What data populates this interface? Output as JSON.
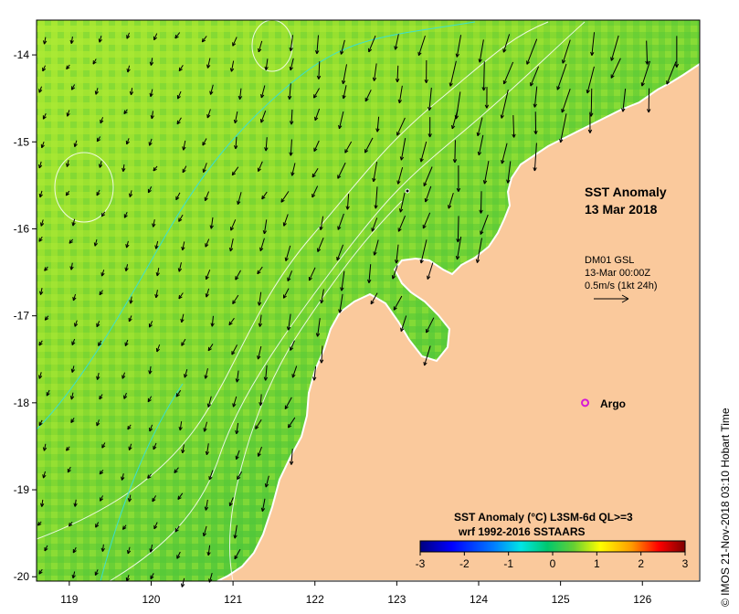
{
  "map": {
    "title_line1": "SST Anomaly",
    "title_line2": "13 Mar 2018",
    "current_source": "DM01 GSL",
    "current_time": "13-Mar 00:00Z",
    "current_scale": "0.5m/s (1kt 24h)",
    "argo_label": "Argo",
    "credit": "© IMOS 21-Nov-2018 03:10 Hobart Time",
    "x_ticks": [
      "119",
      "120",
      "121",
      "122",
      "123",
      "124",
      "125",
      "126"
    ],
    "y_ticks": [
      "-14",
      "-15",
      "-16",
      "-17",
      "-18",
      "-19",
      "-20"
    ],
    "lon_range": [
      118.6,
      126.7
    ],
    "lat_range": [
      -13.6,
      -20.05
    ],
    "argo_position": [
      125.3,
      -18.0
    ],
    "colors": {
      "land": "#fac99c",
      "ocean_base": "#66d033",
      "arrow": "#000000",
      "argo": "#d619d6"
    }
  },
  "legend": {
    "title": "SST Anomaly (°C) L3SM-6d QL>=3",
    "subtitle": "wrf 1992-2016 SSTAARS",
    "ticks": [
      "-3",
      "-2",
      "-1",
      "0",
      "1",
      "2",
      "3"
    ],
    "range": [
      -3,
      3
    ],
    "colors": [
      "#00007f",
      "#0000ff",
      "#007fff",
      "#00ffff",
      "#00c86e",
      "#66d033",
      "#ffff00",
      "#ff7f00",
      "#ff0000",
      "#7f0000"
    ]
  }
}
